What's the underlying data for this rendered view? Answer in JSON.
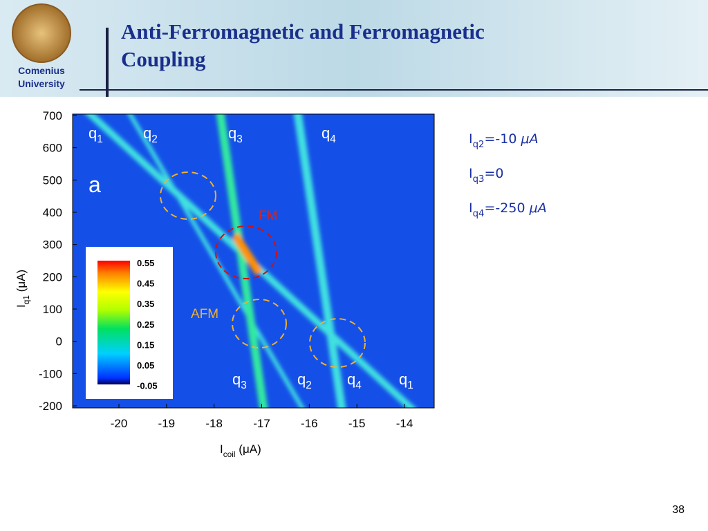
{
  "header": {
    "title": "Anti-Ferromagnetic and Ferromagnetic Coupling",
    "logo_line1": "Comenius",
    "logo_line2": "University"
  },
  "figure": {
    "panel_label": "a",
    "x_axis": {
      "symbol": "I",
      "sub": "coil",
      "unit": " (μA)",
      "ticks": [
        -20,
        -19,
        -18,
        -17,
        -16,
        -15,
        -14
      ]
    },
    "y_axis": {
      "symbol": "I",
      "sub": "q1",
      "unit": " (μA)",
      "ticks": [
        700,
        600,
        500,
        400,
        300,
        200,
        100,
        0,
        -100,
        -200
      ]
    },
    "colorbar_ticks": [
      0.55,
      0.45,
      0.35,
      0.25,
      0.15,
      0.05,
      -0.05
    ],
    "top_labels": [
      {
        "base": "q",
        "sub": "1"
      },
      {
        "base": "q",
        "sub": "2"
      },
      {
        "base": "q",
        "sub": "3"
      },
      {
        "base": "q",
        "sub": "4"
      }
    ],
    "bottom_labels": [
      {
        "base": "q",
        "sub": "3"
      },
      {
        "base": "q",
        "sub": "2"
      },
      {
        "base": "q",
        "sub": "4"
      },
      {
        "base": "q",
        "sub": "1"
      }
    ],
    "fm_label": "FM",
    "afm_label": "AFM"
  },
  "parameters": [
    {
      "symbol": "I",
      "sub": "q2",
      "value": "=-10 ",
      "unit": "μA"
    },
    {
      "symbol": "I",
      "sub": "q3",
      "value": "=0",
      "unit": ""
    },
    {
      "symbol": "I",
      "sub": "q4",
      "value": "=-250 ",
      "unit": "μA"
    }
  ],
  "page_number": "38"
}
